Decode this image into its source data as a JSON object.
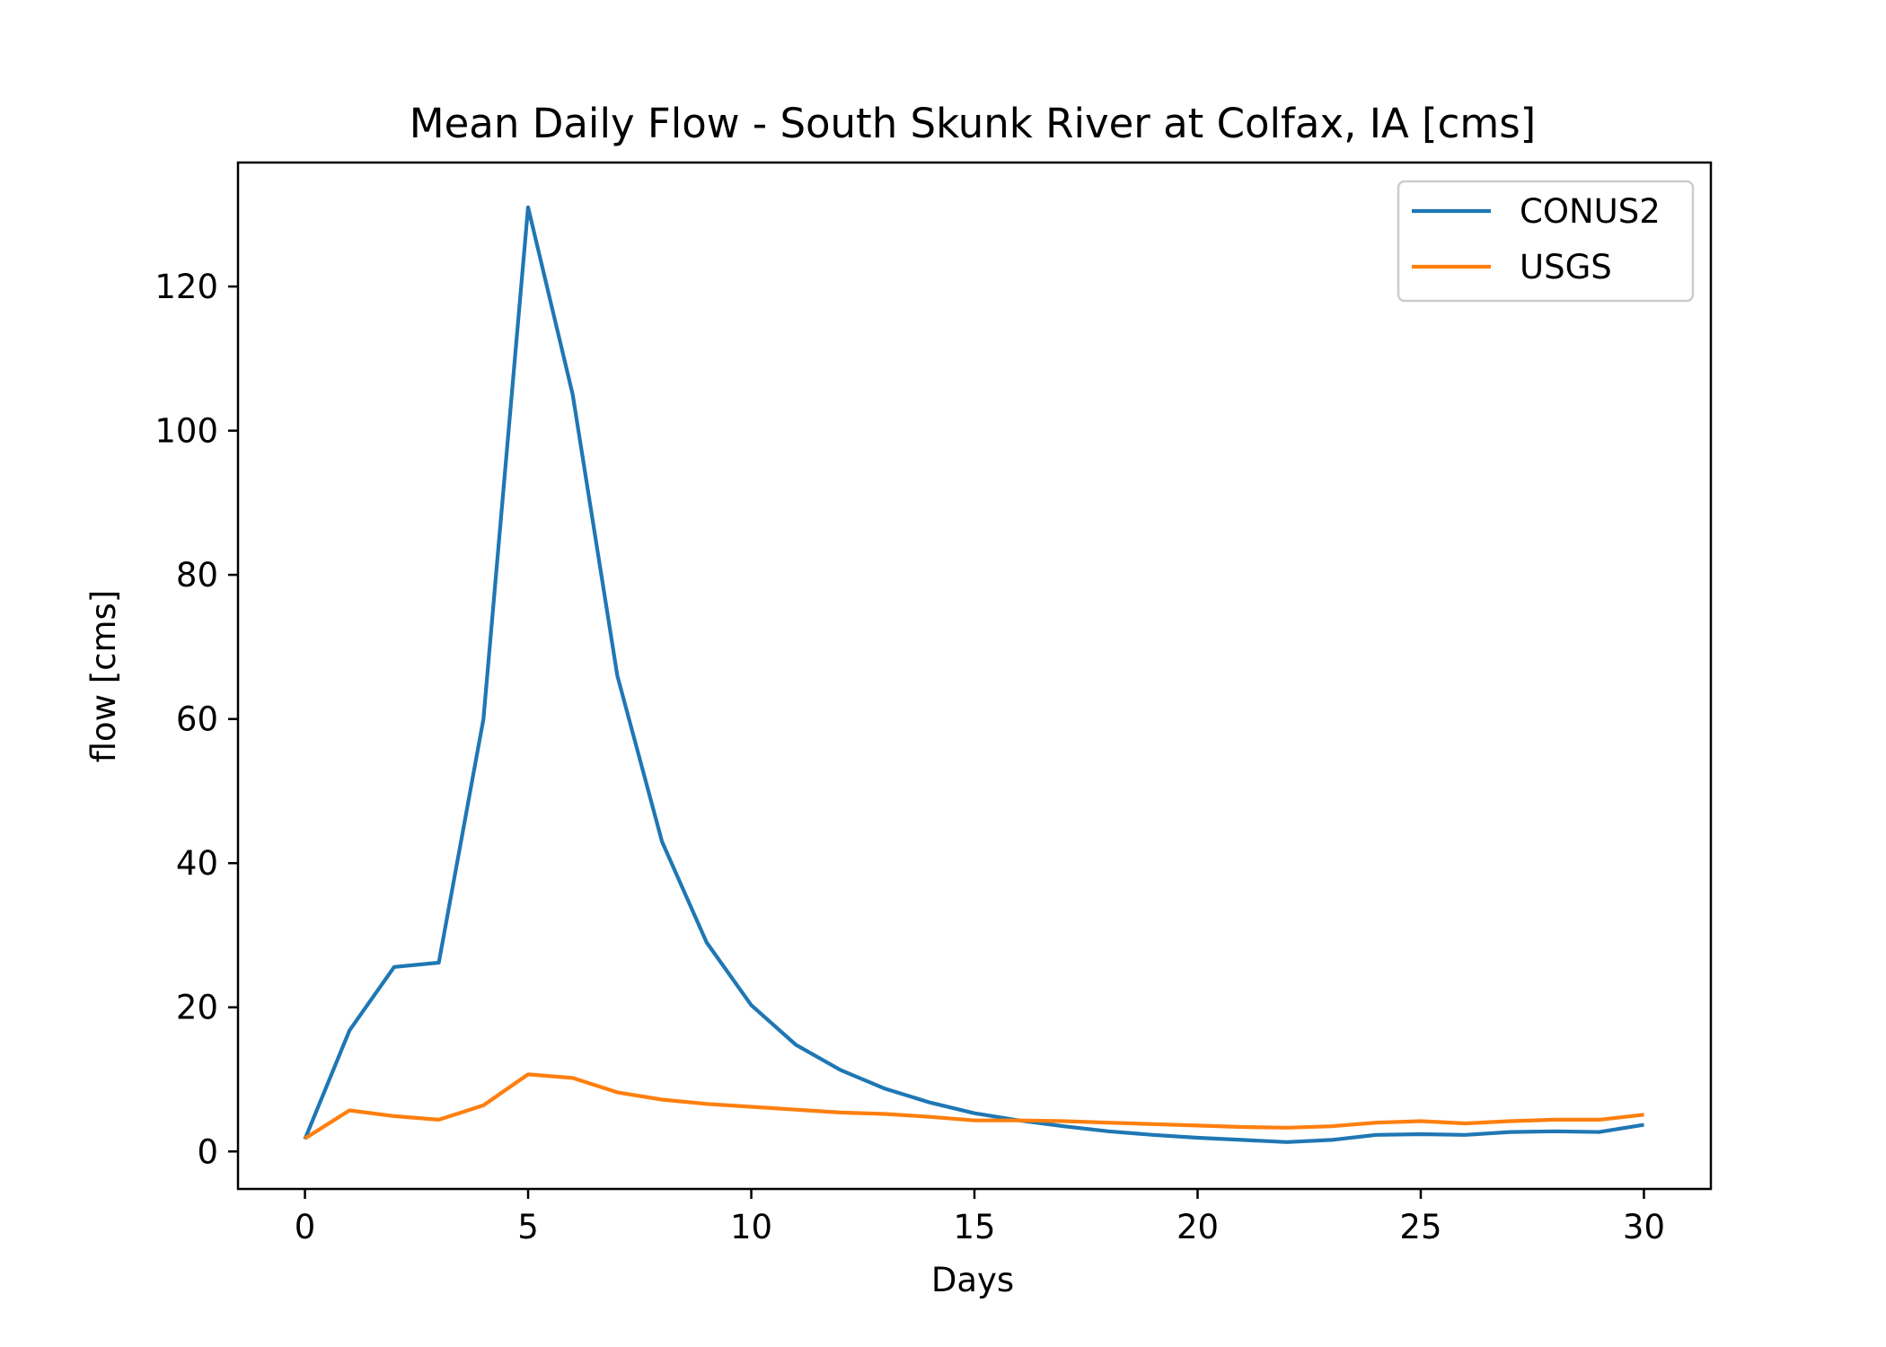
{
  "chart_data": {
    "type": "line",
    "title": "Mean Daily Flow - South Skunk River at Colfax, IA [cms]",
    "xlabel": "Days",
    "ylabel": "flow [cms]",
    "xlim": [
      -1.5,
      31.5
    ],
    "ylim": [
      -5.2,
      137.2
    ],
    "xticks": [
      0,
      5,
      10,
      15,
      20,
      25,
      30
    ],
    "yticks": [
      0,
      20,
      40,
      60,
      80,
      100,
      120
    ],
    "grid": false,
    "legend_position": "top-right",
    "x": [
      0,
      1,
      2,
      3,
      4,
      5,
      6,
      7,
      8,
      9,
      10,
      11,
      12,
      13,
      14,
      15,
      16,
      17,
      18,
      19,
      20,
      21,
      22,
      23,
      24,
      25,
      26,
      27,
      28,
      29,
      30
    ],
    "series": [
      {
        "name": "CONUS2",
        "color": "#1f77b4",
        "values": [
          1.7,
          16.8,
          25.6,
          26.2,
          60.0,
          131.0,
          105.0,
          66.0,
          43.0,
          29.0,
          20.3,
          14.8,
          11.3,
          8.7,
          6.8,
          5.3,
          4.3,
          3.5,
          2.8,
          2.3,
          1.9,
          1.6,
          1.3,
          1.6,
          2.3,
          2.4,
          2.3,
          2.7,
          2.8,
          2.7,
          3.7
        ]
      },
      {
        "name": "USGS",
        "color": "#ff7f0e",
        "values": [
          1.8,
          5.7,
          4.9,
          4.4,
          6.4,
          10.7,
          10.2,
          8.2,
          7.2,
          6.6,
          6.2,
          5.8,
          5.4,
          5.2,
          4.8,
          4.3,
          4.3,
          4.2,
          4.0,
          3.8,
          3.6,
          3.4,
          3.3,
          3.5,
          4.0,
          4.2,
          3.9,
          4.2,
          4.4,
          4.4,
          5.1
        ]
      }
    ]
  }
}
